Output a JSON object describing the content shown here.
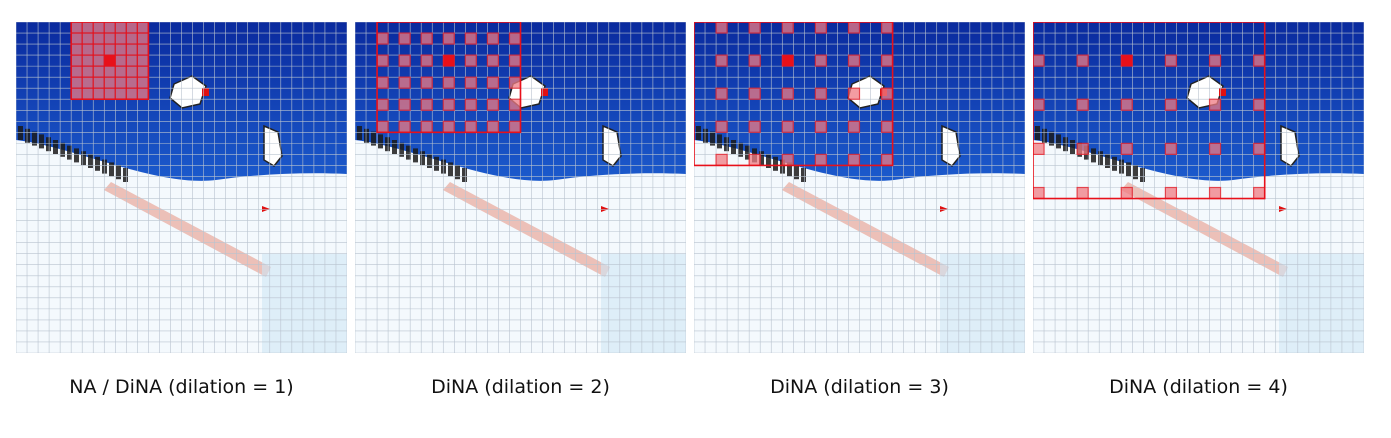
{
  "figure": {
    "panels": [
      {
        "caption": "NA / DiNA (dilation = 1)",
        "dilation": 1
      },
      {
        "caption": "DiNA (dilation = 2)",
        "dilation": 2
      },
      {
        "caption": "DiNA (dilation = 3)",
        "dilation": 3
      },
      {
        "caption": "DiNA (dilation = 4)",
        "dilation": 4
      }
    ],
    "grid_cells": 30,
    "kernel_size": 7,
    "query_cell": [
      3,
      8
    ],
    "colors": {
      "sky_top": "#0a2a9e",
      "sky_bottom": "#2f8fff",
      "snow": "#f4f9fd",
      "grid_line": "#b9c3cf",
      "highlight": "#e8101a",
      "highlight_fill": "#f07c83"
    }
  }
}
